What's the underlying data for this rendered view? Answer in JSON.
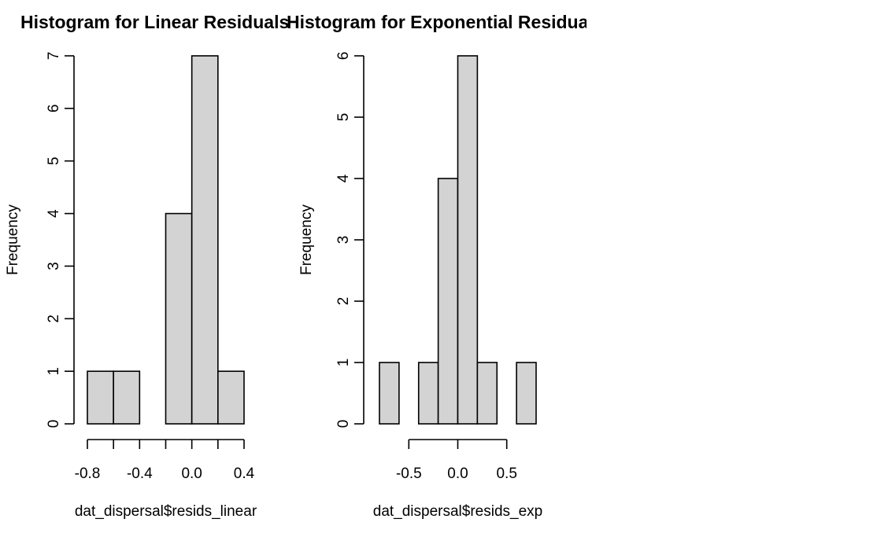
{
  "chart_data": [
    {
      "type": "bar",
      "title": "Histogram for Linear Residuals",
      "xlabel": "dat_dispersal$resids_linear",
      "ylabel": "Frequency",
      "bins": [
        [
          -0.8,
          -0.6
        ],
        [
          -0.6,
          -0.4
        ],
        [
          -0.4,
          -0.2
        ],
        [
          -0.2,
          0.0
        ],
        [
          0.0,
          0.2
        ],
        [
          0.2,
          0.4
        ]
      ],
      "values": [
        1,
        1,
        0,
        4,
        7,
        1
      ],
      "xlim": [
        -0.8,
        0.4
      ],
      "ylim": [
        0,
        7
      ],
      "xticks": [
        -0.8,
        -0.6,
        -0.4,
        -0.2,
        0.0,
        0.2,
        0.4
      ],
      "xtick_labels": [
        "-0.8",
        "-0.4",
        "0.0",
        "0.4"
      ],
      "yticks": [
        0,
        1,
        2,
        3,
        4,
        5,
        6,
        7
      ],
      "ytick_labels": [
        "0",
        "1",
        "2",
        "3",
        "4",
        "5",
        "6",
        "7"
      ],
      "grid": false
    },
    {
      "type": "bar",
      "title": "Histogram for Exponential Residuals",
      "xlabel": "dat_dispersal$resids_exp",
      "ylabel": "Frequency",
      "bins": [
        [
          -0.8,
          -0.6
        ],
        [
          -0.6,
          -0.4
        ],
        [
          -0.4,
          -0.2
        ],
        [
          -0.2,
          0.0
        ],
        [
          0.0,
          0.2
        ],
        [
          0.2,
          0.4
        ],
        [
          0.4,
          0.6
        ],
        [
          0.6,
          0.8
        ]
      ],
      "values": [
        1,
        0,
        1,
        4,
        6,
        1,
        0,
        1
      ],
      "xlim": [
        -0.8,
        0.8
      ],
      "ylim": [
        0,
        6
      ],
      "xticks": [
        -0.5,
        0.0,
        0.5
      ],
      "xtick_labels": [
        "-0.5",
        "0.0",
        "0.5"
      ],
      "yticks": [
        0,
        1,
        2,
        3,
        4,
        5,
        6
      ],
      "ytick_labels": [
        "0",
        "1",
        "2",
        "3",
        "4",
        "5",
        "6"
      ],
      "grid": false
    }
  ]
}
